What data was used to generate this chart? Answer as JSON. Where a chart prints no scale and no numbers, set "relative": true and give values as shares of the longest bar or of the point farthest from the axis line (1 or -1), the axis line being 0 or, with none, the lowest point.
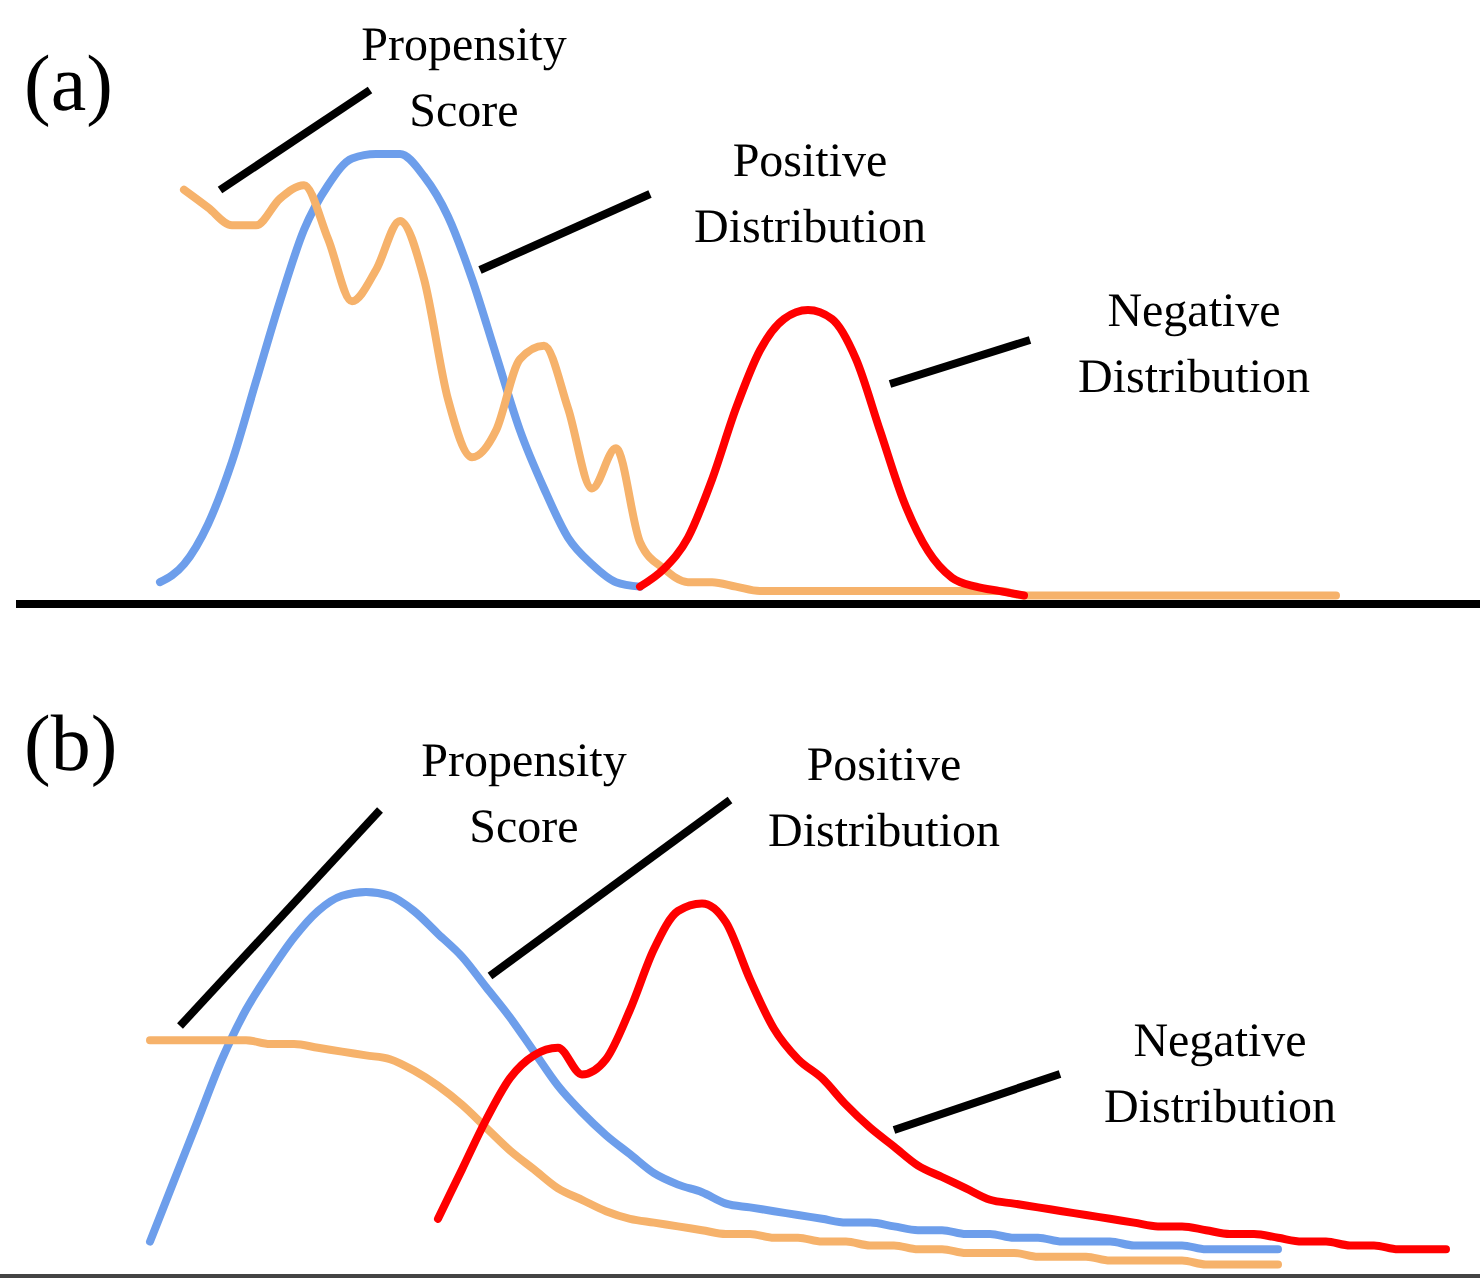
{
  "chart_data": [
    {
      "type": "line",
      "title": "(a)",
      "relative": true,
      "legend": false,
      "categories": [
        null,
        null,
        null,
        null,
        null,
        null,
        null,
        null,
        null,
        null,
        null,
        null,
        null,
        null,
        null,
        null,
        null,
        null,
        null,
        null,
        null,
        null,
        null,
        null,
        null,
        null,
        null,
        null,
        null,
        null,
        null,
        null,
        null,
        null,
        null,
        null,
        null,
        null,
        null,
        null,
        null,
        null,
        null,
        null,
        null,
        null,
        null,
        null,
        null,
        null
      ],
      "series": [
        {
          "name": "Positive Distribution",
          "color": "#6d9eeb",
          "values": [
            0.04,
            0.08,
            0.17,
            0.31,
            0.49,
            0.67,
            0.83,
            0.93,
            0.99,
            1.0,
            1.0,
            0.95,
            0.86,
            0.72,
            0.55,
            0.38,
            0.25,
            0.14,
            0.08,
            0.04,
            0.03,
            null,
            null,
            null,
            null,
            null,
            null,
            null,
            null,
            null,
            null,
            null,
            null,
            null,
            null,
            null,
            null,
            null,
            null,
            null,
            null,
            null,
            null,
            null,
            null,
            null,
            null,
            null,
            null,
            null
          ]
        },
        {
          "name": "Propensity Score",
          "color": "#f6b26b",
          "values": [
            null,
            0.92,
            0.88,
            0.84,
            0.84,
            0.9,
            0.93,
            0.81,
            0.67,
            0.74,
            0.85,
            0.72,
            0.45,
            0.32,
            0.38,
            0.54,
            0.57,
            0.43,
            0.25,
            0.34,
            0.13,
            0.07,
            0.04,
            0.04,
            0.03,
            0.02,
            0.02,
            0.02,
            0.02,
            0.02,
            0.02,
            0.02,
            0.02,
            0.02,
            0.02,
            0.02,
            0.01,
            0.01,
            0.01,
            0.01,
            0.01,
            0.01,
            0.01,
            0.01,
            0.01,
            0.01,
            0.01,
            0.01,
            0.01,
            0.01
          ]
        },
        {
          "name": "Negative Distribution",
          "color": "#ff0000",
          "values": [
            null,
            null,
            null,
            null,
            null,
            null,
            null,
            null,
            null,
            null,
            null,
            null,
            null,
            null,
            null,
            null,
            null,
            null,
            null,
            null,
            0.03,
            0.07,
            0.14,
            0.27,
            0.43,
            0.56,
            0.63,
            0.65,
            0.63,
            0.54,
            0.38,
            0.22,
            0.11,
            0.05,
            0.03,
            0.02,
            0.01,
            null,
            null,
            null,
            null,
            null,
            null,
            null,
            null,
            null,
            null,
            null,
            null,
            null
          ]
        }
      ]
    },
    {
      "type": "line",
      "title": "(b)",
      "relative": true,
      "legend": false,
      "categories": [
        null,
        null,
        null,
        null,
        null,
        null,
        null,
        null,
        null,
        null,
        null,
        null,
        null,
        null,
        null,
        null,
        null,
        null,
        null,
        null,
        null,
        null,
        null,
        null,
        null,
        null,
        null,
        null,
        null,
        null,
        null,
        null,
        null,
        null,
        null,
        null,
        null,
        null,
        null,
        null,
        null,
        null,
        null,
        null,
        null,
        null,
        null,
        null,
        null,
        null,
        null,
        null,
        null,
        null,
        null
      ],
      "series": [
        {
          "name": "Positive Distribution",
          "color": "#6d9eeb",
          "values": [
            0.08,
            0.24,
            0.4,
            0.56,
            0.69,
            0.79,
            0.88,
            0.95,
            0.99,
            1.0,
            0.99,
            0.95,
            0.89,
            0.83,
            0.75,
            0.67,
            0.58,
            0.49,
            0.42,
            0.36,
            0.31,
            0.26,
            0.23,
            0.21,
            0.18,
            0.17,
            0.16,
            0.15,
            0.14,
            0.13,
            0.13,
            0.12,
            0.11,
            0.11,
            0.1,
            0.1,
            0.09,
            0.09,
            0.08,
            0.08,
            0.08,
            0.07,
            0.07,
            0.07,
            0.06,
            0.06,
            0.06,
            0.06,
            null,
            null,
            null,
            null,
            null,
            null,
            null
          ]
        },
        {
          "name": "Propensity Score",
          "color": "#f6b26b",
          "values": [
            0.61,
            0.61,
            0.61,
            0.61,
            0.61,
            0.6,
            0.6,
            0.59,
            0.58,
            0.57,
            0.56,
            0.53,
            0.49,
            0.44,
            0.38,
            0.32,
            0.27,
            0.22,
            0.19,
            0.16,
            0.14,
            0.13,
            0.12,
            0.11,
            0.1,
            0.1,
            0.09,
            0.09,
            0.08,
            0.08,
            0.07,
            0.07,
            0.06,
            0.06,
            0.05,
            0.05,
            0.05,
            0.04,
            0.04,
            0.04,
            0.03,
            0.03,
            0.03,
            0.03,
            0.02,
            0.02,
            0.02,
            0.02,
            null,
            null,
            null,
            null,
            null,
            null,
            null
          ]
        },
        {
          "name": "Negative Distribution",
          "color": "#ff0000",
          "values": [
            null,
            null,
            null,
            null,
            null,
            null,
            null,
            null,
            null,
            null,
            null,
            null,
            0.14,
            0.27,
            0.4,
            0.51,
            0.57,
            0.59,
            0.52,
            0.56,
            0.69,
            0.85,
            0.95,
            0.97,
            0.92,
            0.77,
            0.64,
            0.56,
            0.51,
            0.44,
            0.38,
            0.33,
            0.28,
            0.25,
            0.22,
            0.19,
            0.18,
            0.17,
            0.16,
            0.15,
            0.14,
            0.13,
            0.12,
            0.12,
            0.11,
            0.1,
            0.1,
            0.09,
            0.08,
            0.08,
            0.07,
            0.07,
            0.06,
            0.06,
            0.06
          ]
        }
      ]
    }
  ]
}
